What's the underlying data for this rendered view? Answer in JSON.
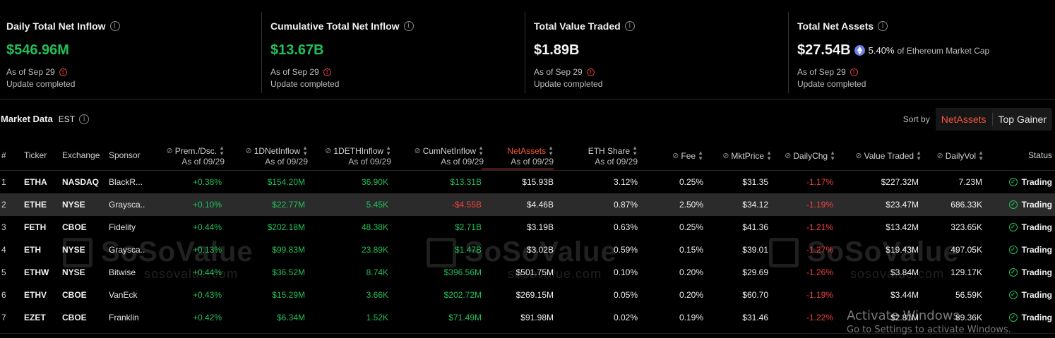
{
  "summary": [
    {
      "title": "Daily Total Net Inflow",
      "value": "$546.96M",
      "value_color": "green",
      "asof": "As of Sep 29",
      "status": "Update completed"
    },
    {
      "title": "Cumulative Total Net Inflow",
      "value": "$13.67B",
      "value_color": "green",
      "asof": "As of Sep 29",
      "status": "Update completed"
    },
    {
      "title": "Total Value Traded",
      "value": "$1.89B",
      "value_color": "white",
      "asof": "As of Sep 29",
      "status": "Update completed"
    },
    {
      "title": "Total Net Assets",
      "value": "$27.54B",
      "value_color": "white",
      "pct": "5.40%",
      "pct_tail": "of Ethereum Market Cap",
      "asof": "As of Sep 29",
      "status": "Update completed"
    }
  ],
  "market": {
    "title": "Market Data",
    "timezone": "EST"
  },
  "sort": {
    "label": "Sort by",
    "options": [
      "NetAssets",
      "Top Gainer"
    ],
    "active": "NetAssets"
  },
  "columns": {
    "num": "#",
    "ticker": "Ticker",
    "exchange": "Exchange",
    "sponsor": "Sponsor",
    "prem": "Prem./Dsc.",
    "prem_sub": "As of 09/29",
    "inflow": "1DNetInflow",
    "inflow_sub": "As of 09/29",
    "ethinflow": "1DETHInflow",
    "ethinflow_sub": "As of 09/29",
    "cum": "CumNetInflow",
    "cum_sub": "As of 09/29",
    "assets": "NetAssets",
    "assets_sub": "As of 09/29",
    "share": "ETH Share",
    "share_sub": "As of 09/29",
    "fee": "Fee",
    "price": "MktPrice",
    "chg": "DailyChg",
    "traded": "Value Traded",
    "vol": "DailyVol",
    "status": "Status"
  },
  "rows": [
    {
      "num": "1",
      "ticker": "ETHA",
      "exchange": "NASDAQ",
      "sponsor": "BlackR...",
      "prem": "+0.38%",
      "inflow": "$154.20M",
      "ethinflow": "36.90K",
      "cum": "$13.31B",
      "assets": "$15.93B",
      "share": "3.12%",
      "fee": "0.25%",
      "price": "$31.35",
      "chg": "-1.17%",
      "traded": "$227.32M",
      "vol": "7.23M",
      "status": "Trading"
    },
    {
      "num": "2",
      "ticker": "ETHE",
      "exchange": "NYSE",
      "sponsor": "Graysca...",
      "prem": "+0.10%",
      "inflow": "$22.77M",
      "ethinflow": "5.45K",
      "cum": "-$4.55B",
      "assets": "$4.46B",
      "share": "0.87%",
      "fee": "2.50%",
      "price": "$34.12",
      "chg": "-1.19%",
      "traded": "$23.47M",
      "vol": "686.33K",
      "status": "Trading"
    },
    {
      "num": "3",
      "ticker": "FETH",
      "exchange": "CBOE",
      "sponsor": "Fidelity",
      "prem": "+0.44%",
      "inflow": "$202.18M",
      "ethinflow": "48.38K",
      "cum": "$2.71B",
      "assets": "$3.19B",
      "share": "0.63%",
      "fee": "0.25%",
      "price": "$41.36",
      "chg": "-1.21%",
      "traded": "$13.42M",
      "vol": "323.65K",
      "status": "Trading"
    },
    {
      "num": "4",
      "ticker": "ETH",
      "exchange": "NYSE",
      "sponsor": "Graysca...",
      "prem": "+0.13%",
      "inflow": "$99.83M",
      "ethinflow": "23.89K",
      "cum": "$1.47B",
      "assets": "$3.02B",
      "share": "0.59%",
      "fee": "0.15%",
      "price": "$39.01",
      "chg": "-1.27%",
      "traded": "$19.43M",
      "vol": "497.05K",
      "status": "Trading"
    },
    {
      "num": "5",
      "ticker": "ETHW",
      "exchange": "NYSE",
      "sponsor": "Bitwise",
      "prem": "+0.44%",
      "inflow": "$36.52M",
      "ethinflow": "8.74K",
      "cum": "$396.56M",
      "assets": "$501.75M",
      "share": "0.10%",
      "fee": "0.20%",
      "price": "$29.69",
      "chg": "-1.26%",
      "traded": "$3.84M",
      "vol": "129.17K",
      "status": "Trading"
    },
    {
      "num": "6",
      "ticker": "ETHV",
      "exchange": "CBOE",
      "sponsor": "VanEck",
      "prem": "+0.43%",
      "inflow": "$15.29M",
      "ethinflow": "3.66K",
      "cum": "$202.72M",
      "assets": "$269.15M",
      "share": "0.05%",
      "fee": "0.20%",
      "price": "$60.70",
      "chg": "-1.19%",
      "traded": "$3.44M",
      "vol": "56.59K",
      "status": "Trading"
    },
    {
      "num": "7",
      "ticker": "EZET",
      "exchange": "CBOE",
      "sponsor": "Franklin",
      "prem": "+0.42%",
      "inflow": "$6.34M",
      "ethinflow": "1.52K",
      "cum": "$71.49M",
      "assets": "$91.98M",
      "share": "0.02%",
      "fee": "0.19%",
      "price": "$31.46",
      "chg": "-1.22%",
      "traded": "$2.81M",
      "vol": "89.36K",
      "status": "Trading"
    }
  ],
  "watermark": {
    "brand": "SoSoValue",
    "domain": "sosovalue.com"
  },
  "windows": {
    "line1": "Activate Windows",
    "line2": "Go to Settings to activate Windows."
  },
  "colors": {
    "positive": "#21c05a",
    "negative": "#f04040",
    "accent": "#f5563d",
    "background": "#000000",
    "eth_coin": "#6b7fe8"
  }
}
